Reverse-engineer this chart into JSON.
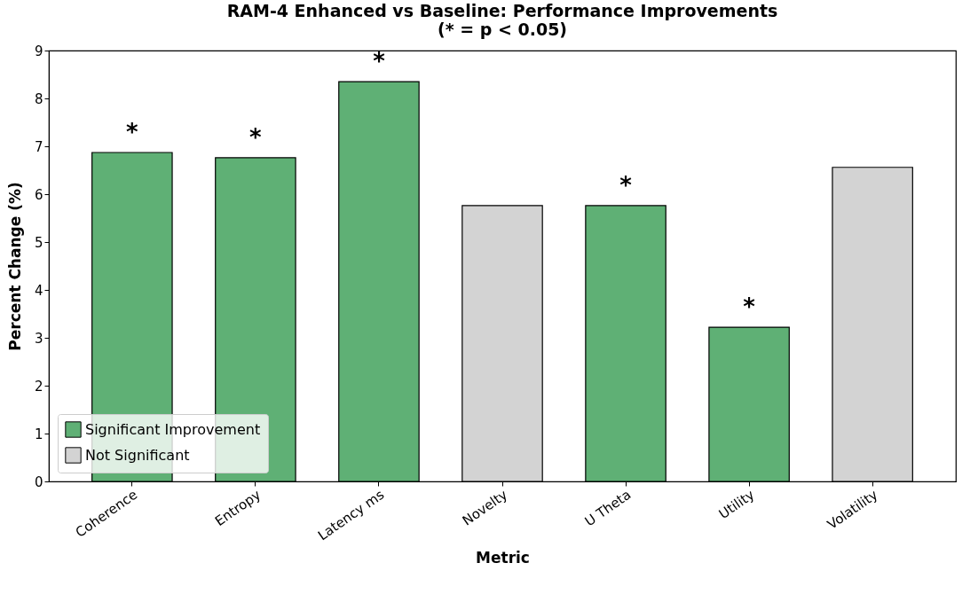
{
  "chart_data": {
    "type": "bar",
    "title": "RAM-4 Enhanced vs Baseline: Performance Improvements",
    "subtitle": "(* = p < 0.05)",
    "xlabel": "Metric",
    "ylabel": "Percent Change (%)",
    "categories": [
      "Coherence",
      "Entropy",
      "Latency ms",
      "Novelty",
      "U Theta",
      "Utility",
      "Volatility"
    ],
    "series": [
      {
        "name": "Significant Improvement",
        "color": "#5fb075",
        "values": [
          6.87,
          6.76,
          8.35,
          null,
          5.76,
          3.22,
          null
        ]
      },
      {
        "name": "Not Significant",
        "color": "#d3d3d3",
        "values": [
          null,
          null,
          null,
          5.76,
          null,
          null,
          6.56
        ]
      }
    ],
    "ylim": [
      0,
      9
    ],
    "yticks": [
      0,
      1,
      2,
      3,
      4,
      5,
      6,
      7,
      8,
      9
    ],
    "grid": false,
    "legend": "bottom left",
    "annotations": [
      {
        "text": "*",
        "x": "Coherence",
        "y": 6.87
      },
      {
        "text": "*",
        "x": "Entropy",
        "y": 6.76
      },
      {
        "text": "*",
        "x": "Latency ms",
        "y": 8.35
      },
      {
        "text": "*",
        "x": "U Theta",
        "y": 5.76
      },
      {
        "text": "*",
        "x": "Utility",
        "y": 3.22
      }
    ]
  }
}
